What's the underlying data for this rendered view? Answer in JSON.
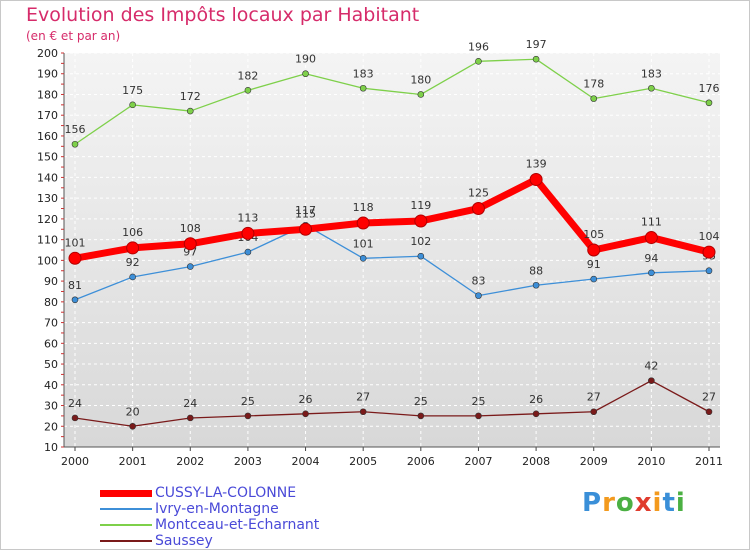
{
  "title": "Evolution des Impôts locaux par Habitant",
  "subtitle": "(en € et par an)",
  "logo": {
    "text": "Proxiti",
    "letters": [
      "P",
      "r",
      "o",
      "x",
      "i",
      "t",
      "i"
    ],
    "colors": [
      "#3a8fd8",
      "#f39a1e",
      "#4bb043",
      "#e03c2e",
      "#f39a1e",
      "#3a8fd8",
      "#4bb043"
    ]
  },
  "chart_data": {
    "type": "line",
    "x": [
      "2000",
      "2001",
      "2002",
      "2003",
      "2004",
      "2005",
      "2006",
      "2007",
      "2008",
      "2009",
      "2010",
      "2011"
    ],
    "ylim": [
      10,
      200
    ],
    "yticks": [
      10,
      20,
      30,
      40,
      50,
      60,
      70,
      80,
      90,
      100,
      110,
      120,
      130,
      140,
      150,
      160,
      170,
      180,
      190,
      200
    ],
    "grid": true,
    "legend_position": "bottom-left",
    "series": [
      {
        "name": "CUSSY-LA-COLONNE",
        "color": "#ff0000",
        "values": [
          101,
          106,
          108,
          113,
          115,
          118,
          119,
          125,
          139,
          105,
          111,
          104
        ]
      },
      {
        "name": "Ivry-en-Montagne",
        "color": "#3d8fd8",
        "values": [
          81,
          92,
          97,
          104,
          117,
          101,
          102,
          83,
          88,
          91,
          94,
          95
        ]
      },
      {
        "name": "Montceau-et-Echarnant",
        "color": "#7ed04a",
        "values": [
          156,
          175,
          172,
          182,
          190,
          183,
          180,
          196,
          197,
          178,
          183,
          176
        ]
      },
      {
        "name": "Saussey",
        "color": "#7a1a1a",
        "values": [
          24,
          20,
          24,
          25,
          26,
          27,
          25,
          25,
          26,
          27,
          42,
          27
        ]
      }
    ]
  }
}
